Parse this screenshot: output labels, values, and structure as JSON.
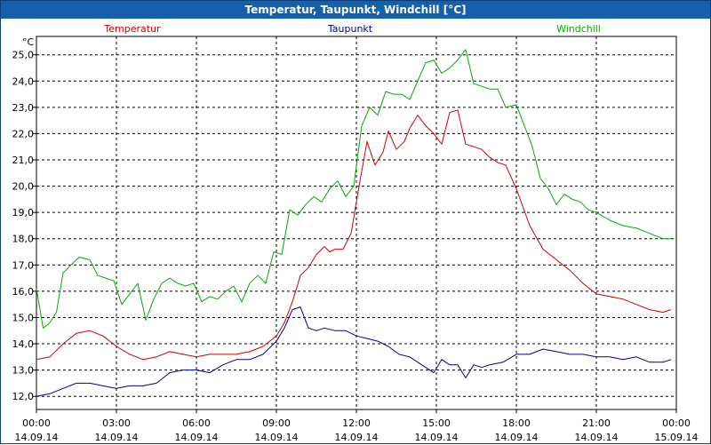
{
  "window": {
    "title": "Temperatur, Taupunkt, Windchill [°C]"
  },
  "chart_data": {
    "type": "line",
    "title": "Temperatur, Taupunkt, Windchill [°C]",
    "ylabel": "°C",
    "xlabel": "",
    "ylim": [
      11.5,
      25.7
    ],
    "xlim_hours": [
      0,
      24
    ],
    "grid": true,
    "y_ticks": [
      "12,0",
      "13,0",
      "14,0",
      "15,0",
      "16,0",
      "17,0",
      "18,0",
      "19,0",
      "20,0",
      "21,0",
      "22,0",
      "23,0",
      "24,0",
      "25,0"
    ],
    "x_ticks": [
      {
        "time": "00:00",
        "date": "14.09.14"
      },
      {
        "time": "03:00",
        "date": "14.09.14"
      },
      {
        "time": "06:00",
        "date": "14.09.14"
      },
      {
        "time": "09:00",
        "date": "14.09.14"
      },
      {
        "time": "12:00",
        "date": "14.09.14"
      },
      {
        "time": "15:00",
        "date": "14.09.14"
      },
      {
        "time": "18:00",
        "date": "14.09.14"
      },
      {
        "time": "21:00",
        "date": "14.09.14"
      },
      {
        "time": "00:00",
        "date": "15.09.14"
      }
    ],
    "series": [
      {
        "name": "Temperatur",
        "color": "#cc0000",
        "x": [
          0,
          0.5,
          1,
          1.5,
          2,
          2.5,
          3,
          3.5,
          4,
          4.5,
          5,
          5.5,
          6,
          6.5,
          7,
          7.5,
          8,
          8.5,
          9,
          9.3,
          9.6,
          9.9,
          10.2,
          10.5,
          10.8,
          11,
          11.2,
          11.5,
          11.8,
          12.1,
          12.4,
          12.7,
          13,
          13.2,
          13.5,
          13.8,
          14,
          14.3,
          14.6,
          14.9,
          15.2,
          15.5,
          15.8,
          16.1,
          16.4,
          16.7,
          17,
          17.3,
          17.6,
          18,
          18.5,
          19,
          19.5,
          20,
          20.5,
          21,
          21.5,
          22,
          22.5,
          23,
          23.5,
          23.8
        ],
        "values": [
          13.4,
          13.5,
          14.0,
          14.4,
          14.5,
          14.3,
          13.9,
          13.6,
          13.4,
          13.5,
          13.7,
          13.6,
          13.5,
          13.6,
          13.6,
          13.6,
          13.7,
          13.9,
          14.3,
          14.8,
          15.6,
          16.6,
          16.9,
          17.4,
          17.7,
          17.5,
          17.6,
          17.6,
          18.2,
          20.0,
          21.7,
          20.8,
          21.3,
          22.1,
          21.4,
          21.7,
          22.2,
          22.7,
          22.3,
          22.0,
          21.6,
          22.8,
          22.9,
          21.6,
          21.5,
          21.4,
          21.1,
          20.9,
          20.8,
          19.9,
          18.5,
          17.6,
          17.2,
          16.8,
          16.3,
          15.9,
          15.8,
          15.7,
          15.5,
          15.3,
          15.2,
          15.3
        ]
      },
      {
        "name": "Taupunkt",
        "color": "#00008b",
        "x": [
          0,
          0.5,
          1,
          1.5,
          2,
          2.5,
          3,
          3.5,
          4,
          4.5,
          5,
          5.5,
          6,
          6.5,
          7,
          7.5,
          8,
          8.5,
          9,
          9.3,
          9.6,
          9.9,
          10.2,
          10.5,
          10.8,
          11.2,
          11.6,
          12,
          12.4,
          12.8,
          13.2,
          13.6,
          14,
          14.3,
          14.6,
          14.9,
          15.2,
          15.5,
          15.8,
          16.1,
          16.4,
          16.7,
          17,
          17.5,
          18,
          18.5,
          19,
          19.5,
          20,
          20.5,
          21,
          21.5,
          22,
          22.5,
          23,
          23.5,
          23.8
        ],
        "values": [
          12.0,
          12.1,
          12.3,
          12.5,
          12.5,
          12.4,
          12.3,
          12.4,
          12.4,
          12.5,
          12.9,
          13.0,
          13.0,
          12.9,
          13.2,
          13.4,
          13.4,
          13.6,
          14.1,
          14.6,
          15.3,
          15.4,
          14.6,
          14.5,
          14.6,
          14.5,
          14.5,
          14.3,
          14.2,
          14.1,
          13.9,
          13.6,
          13.5,
          13.3,
          13.1,
          12.9,
          13.4,
          13.2,
          13.2,
          12.7,
          13.2,
          13.1,
          13.2,
          13.3,
          13.6,
          13.6,
          13.8,
          13.7,
          13.6,
          13.6,
          13.5,
          13.5,
          13.4,
          13.5,
          13.3,
          13.3,
          13.4
        ]
      },
      {
        "name": "Windchill",
        "color": "#00aa00",
        "x": [
          0,
          0.25,
          0.5,
          0.75,
          1,
          1.3,
          1.6,
          2,
          2.3,
          2.6,
          2.9,
          3.2,
          3.5,
          3.8,
          4.1,
          4.4,
          4.7,
          5,
          5.3,
          5.6,
          5.9,
          6.2,
          6.5,
          6.8,
          7.1,
          7.4,
          7.7,
          8,
          8.3,
          8.6,
          8.9,
          9.2,
          9.5,
          9.8,
          10.1,
          10.4,
          10.7,
          11,
          11.3,
          11.6,
          11.9,
          12.2,
          12.5,
          12.8,
          13.1,
          13.4,
          13.7,
          14,
          14.3,
          14.6,
          14.9,
          15.2,
          15.5,
          15.8,
          16.1,
          16.4,
          16.7,
          17,
          17.3,
          17.6,
          18,
          18.3,
          18.6,
          18.9,
          19.2,
          19.5,
          19.8,
          20.1,
          20.4,
          20.7,
          21,
          21.5,
          22,
          22.5,
          23,
          23.5,
          23.8
        ],
        "values": [
          16.1,
          14.6,
          14.8,
          15.2,
          16.7,
          17.0,
          17.3,
          17.2,
          16.6,
          16.5,
          16.4,
          15.5,
          15.9,
          16.3,
          14.9,
          15.7,
          16.3,
          16.5,
          16.3,
          16.2,
          16.3,
          15.6,
          15.8,
          15.7,
          16.0,
          16.2,
          15.6,
          16.3,
          16.6,
          16.3,
          17.5,
          17.4,
          19.1,
          18.9,
          19.3,
          19.6,
          19.4,
          19.9,
          20.2,
          19.6,
          20.0,
          22.3,
          23.0,
          22.7,
          23.6,
          23.5,
          23.5,
          23.3,
          24.0,
          24.7,
          24.8,
          24.3,
          24.5,
          24.8,
          25.2,
          23.9,
          23.8,
          23.7,
          23.7,
          23.0,
          23.1,
          22.3,
          21.5,
          20.3,
          19.9,
          19.3,
          19.7,
          19.5,
          19.4,
          19.1,
          19.0,
          18.7,
          18.5,
          18.4,
          18.2,
          18.0,
          18.0
        ]
      }
    ],
    "legend": {
      "placement": "top",
      "items": [
        {
          "label": "Temperatur",
          "color": "#cc0000"
        },
        {
          "label": "Taupunkt",
          "color": "#00008b"
        },
        {
          "label": "Windchill",
          "color": "#00aa00"
        }
      ]
    }
  }
}
